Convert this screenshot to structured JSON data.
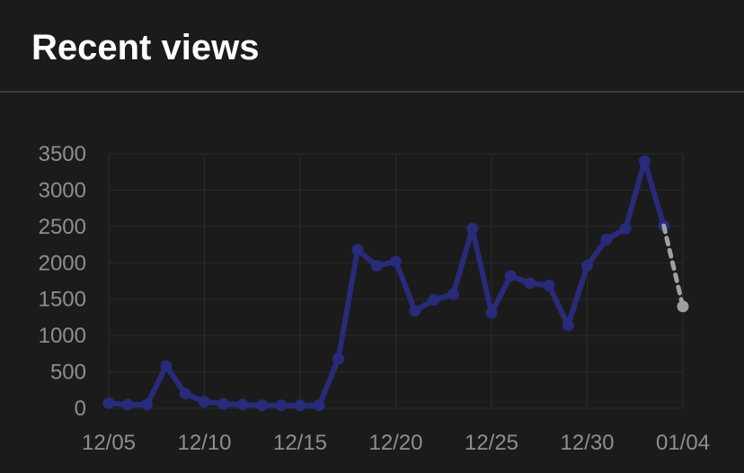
{
  "header": {
    "title": "Recent views"
  },
  "colors": {
    "background": "#1b1b1b",
    "series": "#282a7a",
    "projection": "#a0a0a0",
    "grid": "#2b2b2b",
    "tick_text": "#8e8e8e",
    "title_text": "#ffffff"
  },
  "chart_data": {
    "type": "line",
    "title": "Recent views",
    "xlabel": "",
    "ylabel": "",
    "ylim": [
      0,
      3500
    ],
    "y_ticks": [
      0,
      500,
      1000,
      1500,
      2000,
      2500,
      3000,
      3500
    ],
    "x_ticks": [
      "12/05",
      "12/10",
      "12/15",
      "12/20",
      "12/25",
      "12/30",
      "01/04"
    ],
    "grid": true,
    "legend": "none",
    "x": [
      "12/05",
      "12/06",
      "12/07",
      "12/08",
      "12/09",
      "12/10",
      "12/11",
      "12/12",
      "12/13",
      "12/14",
      "12/15",
      "12/16",
      "12/17",
      "12/18",
      "12/19",
      "12/20",
      "12/21",
      "12/22",
      "12/23",
      "12/24",
      "12/25",
      "12/26",
      "12/27",
      "12/28",
      "12/29",
      "12/30",
      "12/31",
      "01/01",
      "01/02",
      "01/03",
      "01/04"
    ],
    "series": [
      {
        "values": [
          70,
          50,
          50,
          580,
          200,
          90,
          60,
          50,
          40,
          40,
          40,
          40,
          680,
          2180,
          1960,
          2020,
          1340,
          1490,
          1570,
          2470,
          1310,
          1820,
          1720,
          1690,
          1140,
          1960,
          2320,
          2470,
          3400,
          2510,
          null
        ]
      },
      {
        "style": "dashed",
        "values": [
          null,
          null,
          null,
          null,
          null,
          null,
          null,
          null,
          null,
          null,
          null,
          null,
          null,
          null,
          null,
          null,
          null,
          null,
          null,
          null,
          null,
          null,
          null,
          null,
          null,
          null,
          null,
          null,
          null,
          2510,
          1400
        ]
      }
    ]
  }
}
